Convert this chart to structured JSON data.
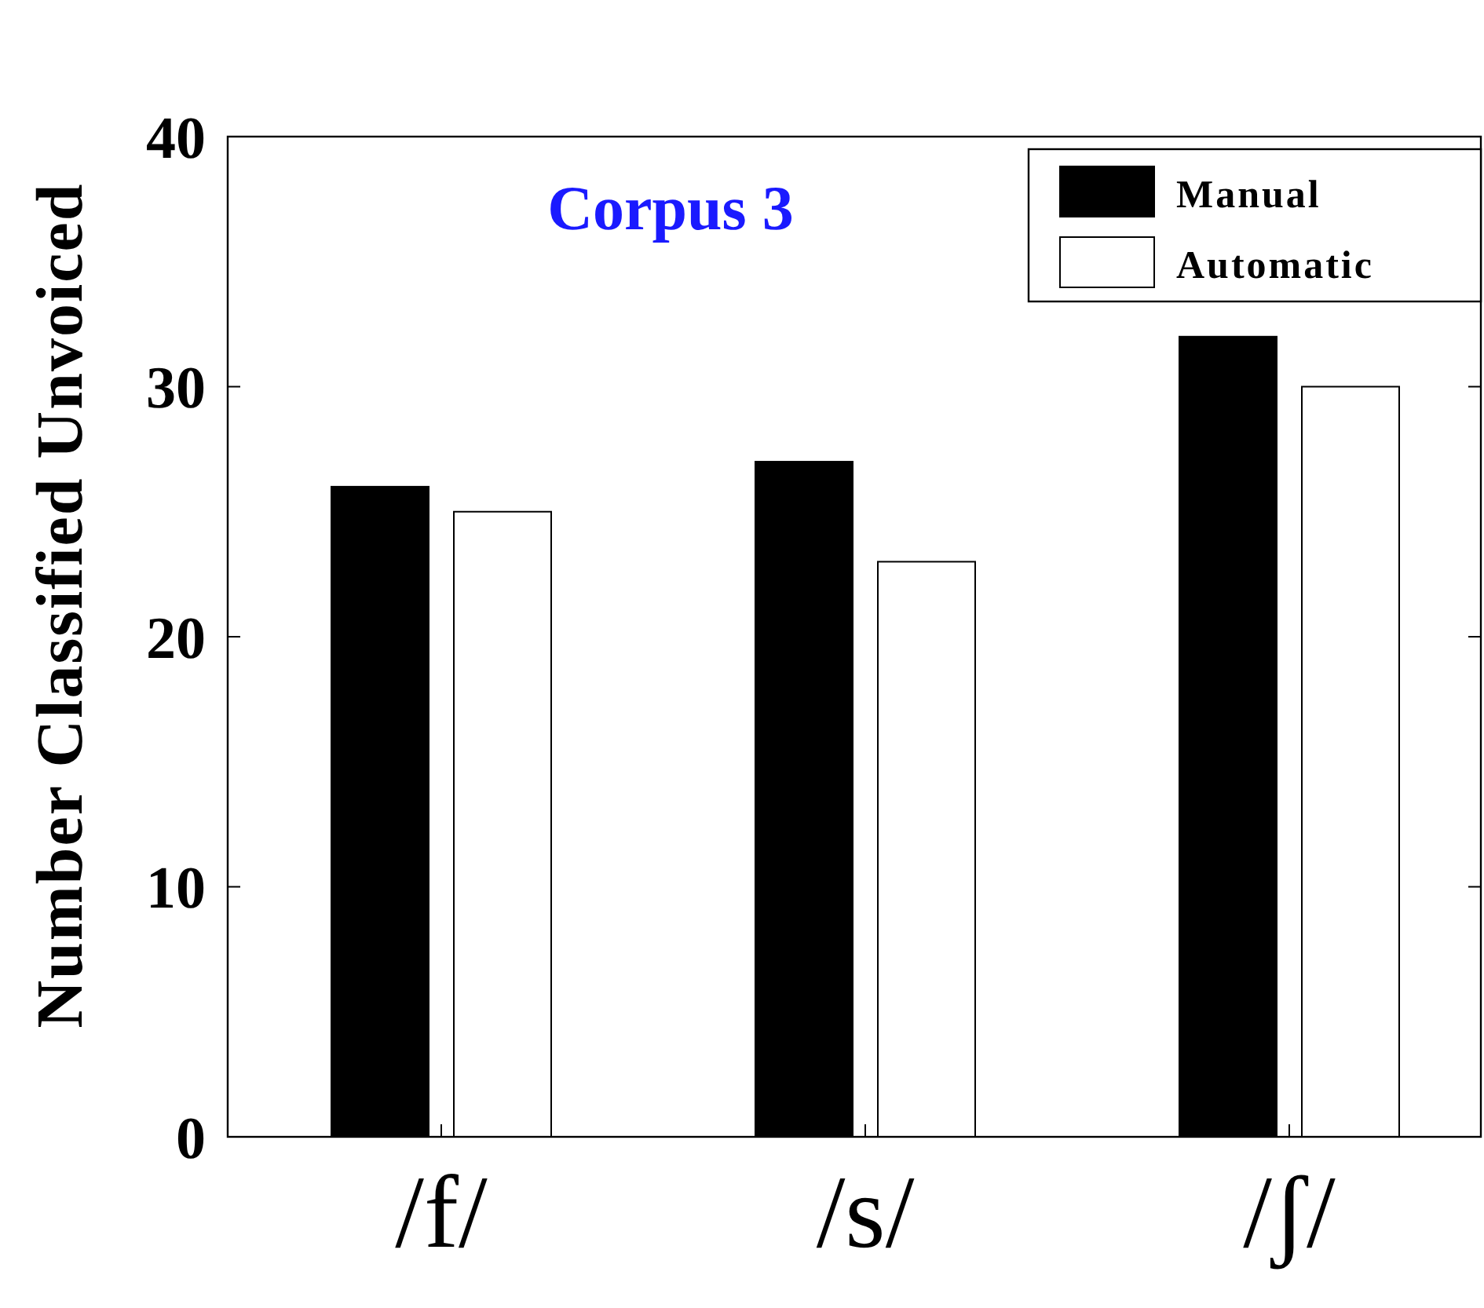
{
  "chart_data": {
    "type": "bar",
    "title": "Corpus 3",
    "ylabel": "Number Classified Unvoiced",
    "categories": [
      "/f/",
      "/s/",
      "/ʃ/"
    ],
    "series": [
      {
        "name": "Manual",
        "color": "#000000",
        "values": [
          26,
          27,
          32
        ]
      },
      {
        "name": "Automatic",
        "color": "#ffffff",
        "values": [
          25,
          23,
          30
        ]
      }
    ],
    "ylim": [
      0,
      40
    ],
    "yticks": [
      0,
      10,
      20,
      30,
      40
    ],
    "legend": "top right",
    "grid": false
  }
}
